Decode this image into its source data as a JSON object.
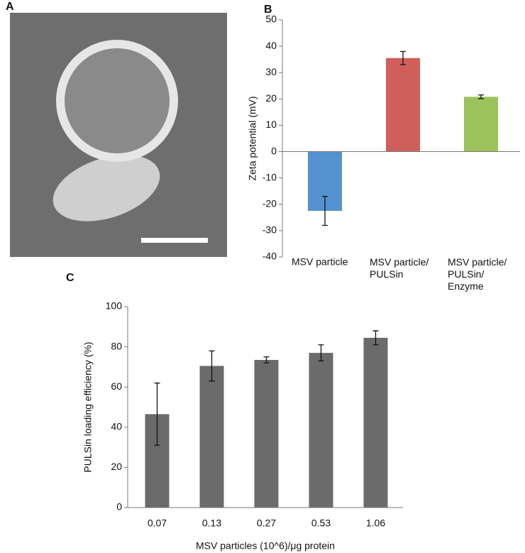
{
  "image_panel": {
    "label": "A"
  },
  "chart_data": [
    {
      "type": "bar",
      "panel": "B",
      "ylabel": "Zeta potential (mV)",
      "categories": [
        "MSV particle",
        "MSV particle/\nPULSin",
        "MSV particle/\nPULSin/\nEnzyme"
      ],
      "values": [
        -22.5,
        35.5,
        20.8
      ],
      "errors": [
        5.5,
        2.5,
        0.7
      ],
      "colors": [
        "#5592cf",
        "#d05f5c",
        "#9cc25c"
      ],
      "ylim": [
        -40,
        50
      ],
      "yticks": [
        -40,
        -30,
        -20,
        -10,
        0,
        10,
        20,
        30,
        40,
        50
      ],
      "grid": false
    },
    {
      "type": "bar",
      "panel": "C",
      "ylabel": "PULSin loading efficiency (%)",
      "xlabel": "MSV particles (10^6)/μg protein",
      "categories": [
        "0.07",
        "0.13",
        "0.27",
        "0.53",
        "1.06"
      ],
      "values": [
        46.5,
        70.5,
        73.5,
        77,
        84.5
      ],
      "errors": [
        15.5,
        7.5,
        1.5,
        4,
        3.5
      ],
      "colors": [
        "#6b6b6b",
        "#6b6b6b",
        "#6b6b6b",
        "#6b6b6b",
        "#6b6b6b"
      ],
      "ylim": [
        0,
        100
      ],
      "yticks": [
        0,
        20,
        40,
        60,
        80,
        100
      ],
      "grid": false
    }
  ]
}
